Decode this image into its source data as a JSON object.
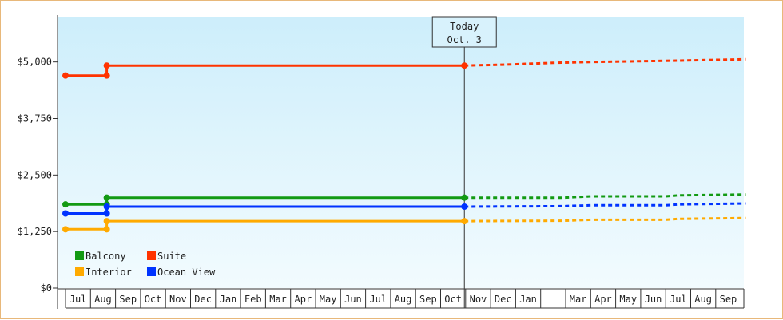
{
  "chart_data": {
    "type": "line",
    "title": "",
    "xlabel": "",
    "ylabel": "",
    "ylim": [
      0,
      6000
    ],
    "y_ticks": [
      {
        "value": 0,
        "label": "$0"
      },
      {
        "value": 1250,
        "label": "$1,250"
      },
      {
        "value": 2500,
        "label": "$2,500"
      },
      {
        "value": 3750,
        "label": "$3,750"
      },
      {
        "value": 5000,
        "label": "$5,000"
      }
    ],
    "x_months": [
      "Jul",
      "Aug",
      "Sep",
      "Oct",
      "Nov",
      "Dec",
      "Jan",
      "Feb",
      "Mar",
      "Apr",
      "May",
      "Jun",
      "Jul",
      "Aug",
      "Sep",
      "Oct",
      "Nov",
      "Dec",
      "Jan",
      "",
      "Mar",
      "Apr",
      "May",
      "Jun",
      "Jul",
      "Aug",
      "Sep"
    ],
    "today": {
      "line1": "Today",
      "line2": "Oct. 3",
      "x": 15.95
    },
    "legend_position": "bottom-left",
    "grid": false,
    "series": [
      {
        "name": "Suite",
        "color": "#ff3300",
        "actual": [
          [
            0,
            4700
          ],
          [
            1.65,
            4700
          ],
          [
            1.65,
            4920
          ],
          [
            15.95,
            4920
          ]
        ],
        "markers": [
          [
            0,
            4700
          ],
          [
            1.65,
            4700
          ],
          [
            1.65,
            4920
          ],
          [
            15.95,
            4920
          ]
        ],
        "forecast": [
          [
            15.95,
            4920
          ],
          [
            17.5,
            4940
          ],
          [
            19.5,
            4980
          ],
          [
            21,
            5000
          ],
          [
            24.5,
            5030
          ],
          [
            27.2,
            5060
          ]
        ]
      },
      {
        "name": "Balcony",
        "color": "#139a13",
        "actual": [
          [
            0,
            1850
          ],
          [
            1.65,
            1850
          ],
          [
            1.65,
            2000
          ],
          [
            15.95,
            2000
          ]
        ],
        "markers": [
          [
            0,
            1850
          ],
          [
            1.65,
            1850
          ],
          [
            1.65,
            2000
          ],
          [
            15.95,
            2000
          ]
        ],
        "forecast": [
          [
            15.95,
            2000
          ],
          [
            19.9,
            2000
          ],
          [
            21,
            2030
          ],
          [
            24,
            2030
          ],
          [
            24.5,
            2050
          ],
          [
            27.2,
            2070
          ]
        ]
      },
      {
        "name": "Ocean View",
        "color": "#0033ff",
        "actual": [
          [
            0,
            1650
          ],
          [
            1.65,
            1650
          ],
          [
            1.65,
            1800
          ],
          [
            15.95,
            1800
          ]
        ],
        "markers": [
          [
            0,
            1650
          ],
          [
            1.65,
            1650
          ],
          [
            1.65,
            1800
          ],
          [
            15.95,
            1800
          ]
        ],
        "forecast": [
          [
            15.95,
            1800
          ],
          [
            19.9,
            1810
          ],
          [
            21,
            1830
          ],
          [
            24,
            1830
          ],
          [
            24.5,
            1850
          ],
          [
            27.2,
            1870
          ]
        ]
      },
      {
        "name": "Interior",
        "color": "#ffaa00",
        "actual": [
          [
            0,
            1300
          ],
          [
            1.65,
            1300
          ],
          [
            1.65,
            1480
          ],
          [
            15.95,
            1480
          ]
        ],
        "markers": [
          [
            0,
            1300
          ],
          [
            1.65,
            1300
          ],
          [
            1.65,
            1480
          ],
          [
            15.95,
            1480
          ]
        ],
        "forecast": [
          [
            15.95,
            1480
          ],
          [
            19.9,
            1490
          ],
          [
            21,
            1510
          ],
          [
            24,
            1510
          ],
          [
            24.5,
            1530
          ],
          [
            27.2,
            1550
          ]
        ]
      }
    ],
    "legend": [
      {
        "name": "Balcony",
        "color": "#139a13"
      },
      {
        "name": "Suite",
        "color": "#ff3300"
      },
      {
        "name": "Interior",
        "color": "#ffaa00"
      },
      {
        "name": "Ocean View",
        "color": "#0033ff"
      }
    ]
  }
}
